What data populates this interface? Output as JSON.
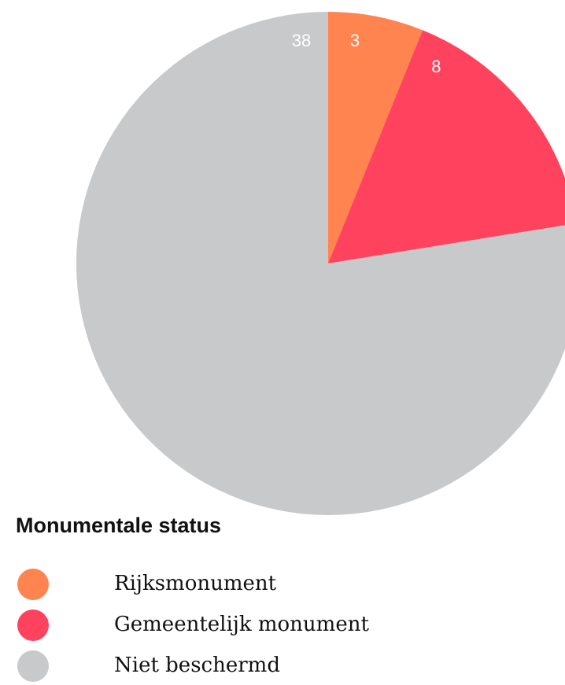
{
  "chart_data": {
    "type": "pie",
    "legend_title": "Monumentale status",
    "categories": [
      "Rijksmonument",
      "Gemeentelijk monument",
      "Niet beschermd"
    ],
    "values": [
      3,
      8,
      38
    ],
    "colors": [
      "#ff8450",
      "#ff425e",
      "#c8c9cb"
    ]
  }
}
